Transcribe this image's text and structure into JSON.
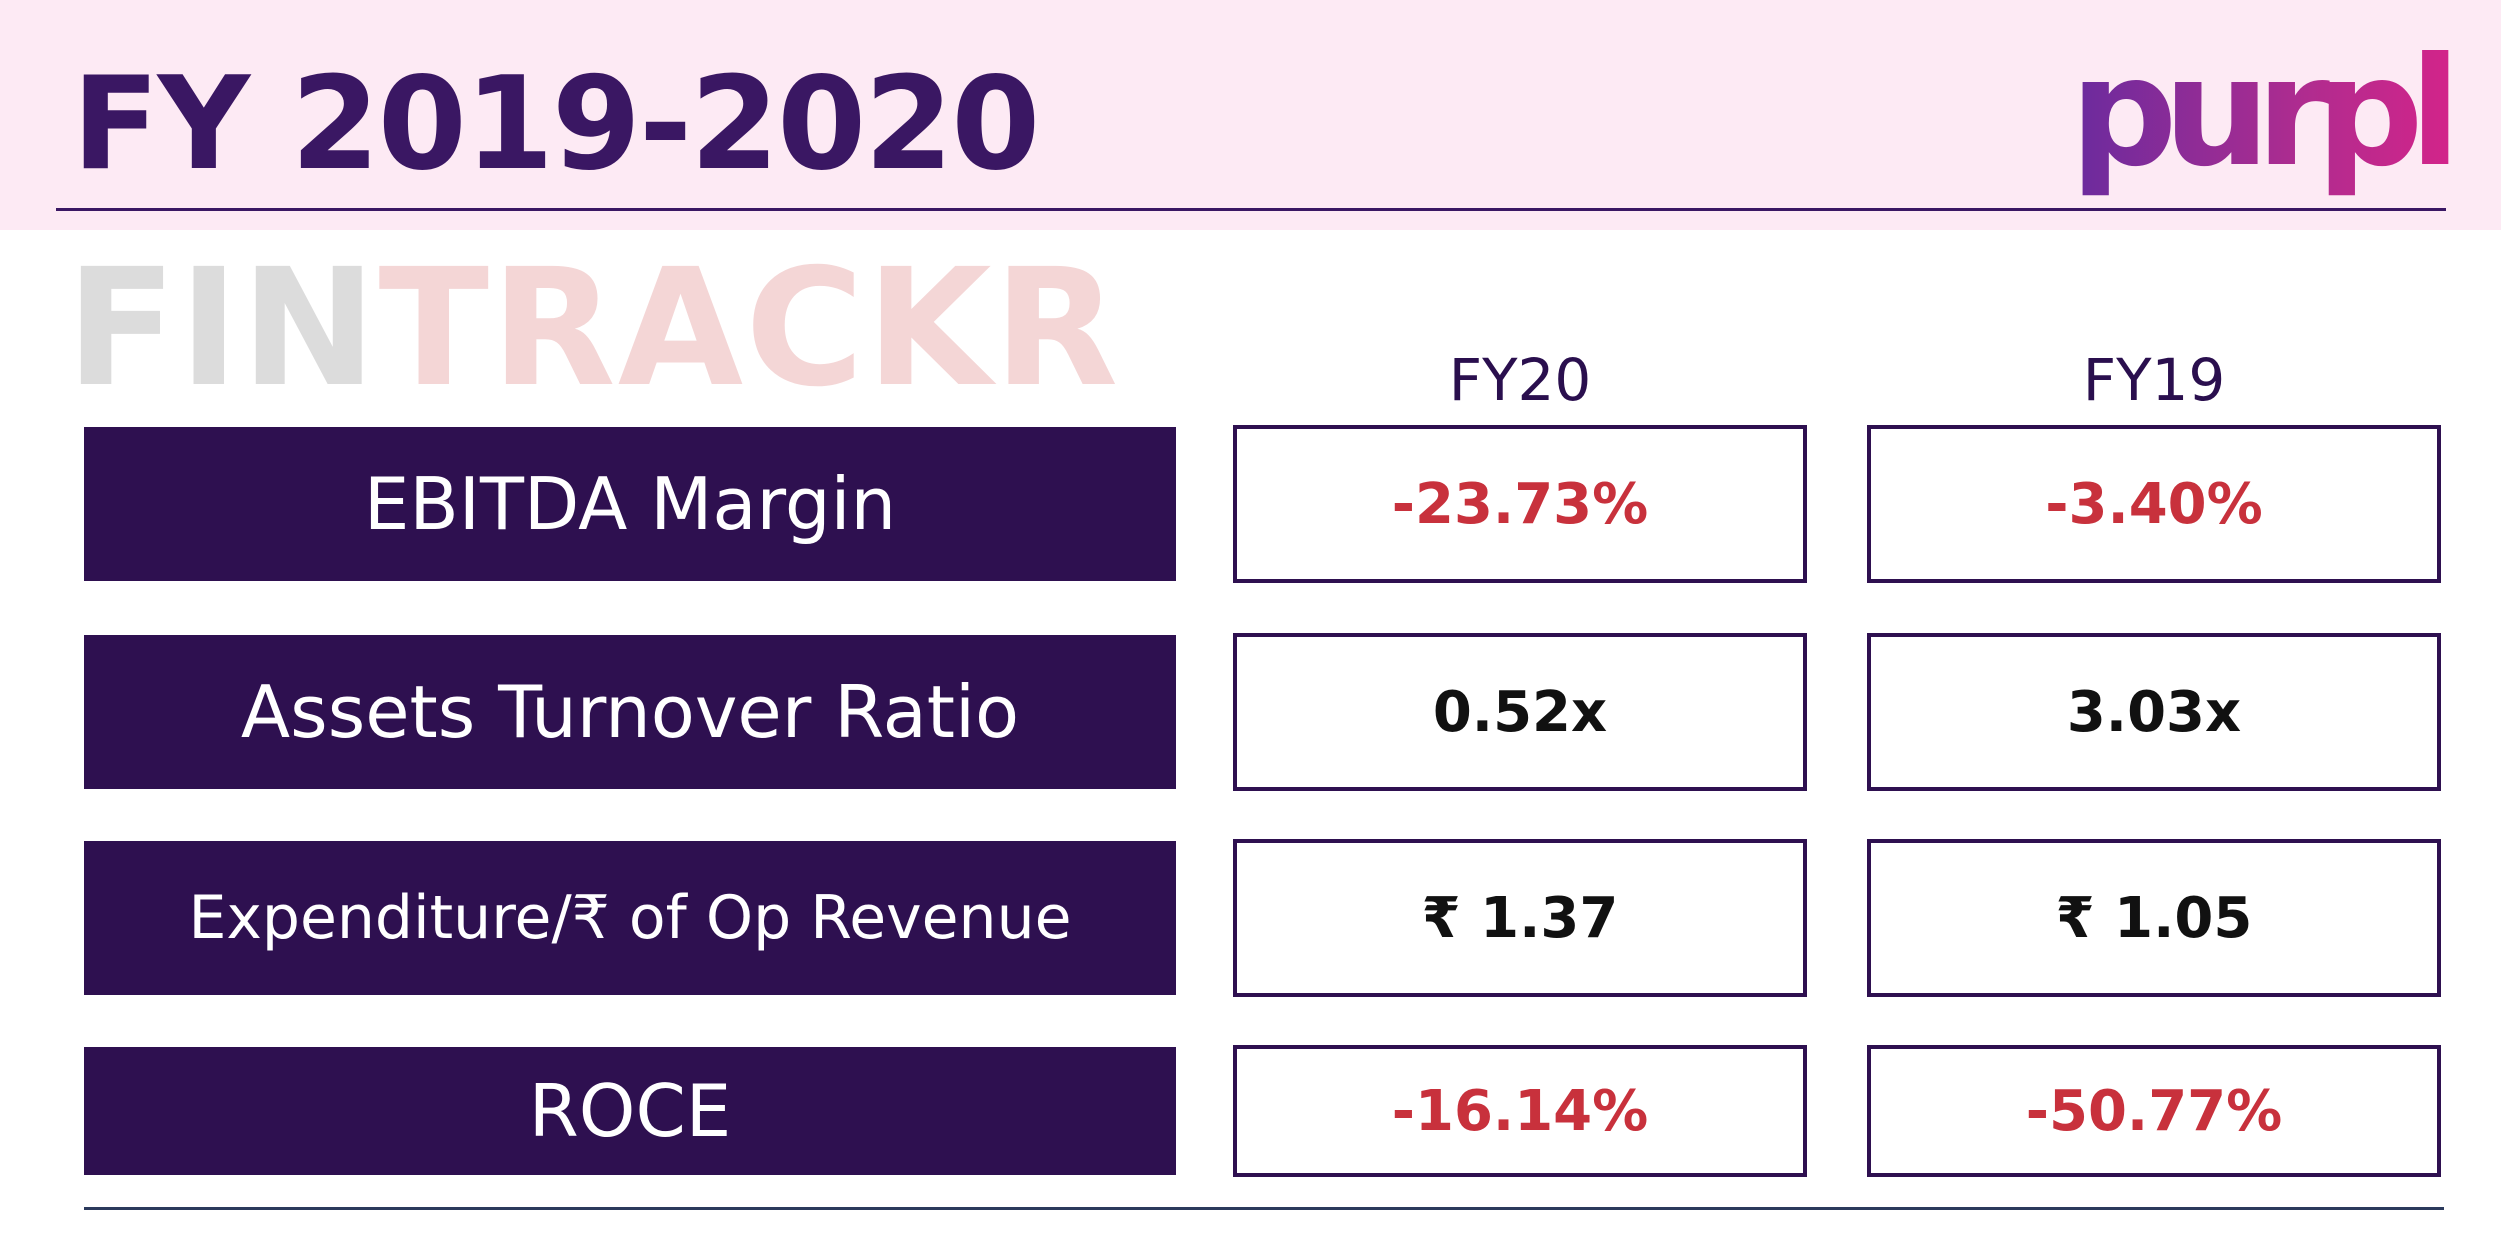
{
  "header": {
    "title": "FY 2019-2020",
    "brand": "purple"
  },
  "watermark": {
    "part1": "FIN",
    "part2": "TRACKR"
  },
  "columns": {
    "current": "FY20",
    "previous": "FY19"
  },
  "rows": [
    {
      "label": "EBITDA Margin",
      "fy20": "-23.73%",
      "fy19": "-3.40%"
    },
    {
      "label": "Assets Turnover Ratio",
      "fy20": "0.52x",
      "fy19": "3.03x"
    },
    {
      "label": "Expenditure/₹ of Op Revenue",
      "fy20": "₹ 1.37",
      "fy19": "₹ 1.05"
    },
    {
      "label": "ROCE",
      "fy20": "-16.14%",
      "fy19": "-50.77%"
    }
  ],
  "colors": {
    "primary": "#2e1050",
    "negative": "#c8313c",
    "header_band": "#fdeaf4"
  }
}
